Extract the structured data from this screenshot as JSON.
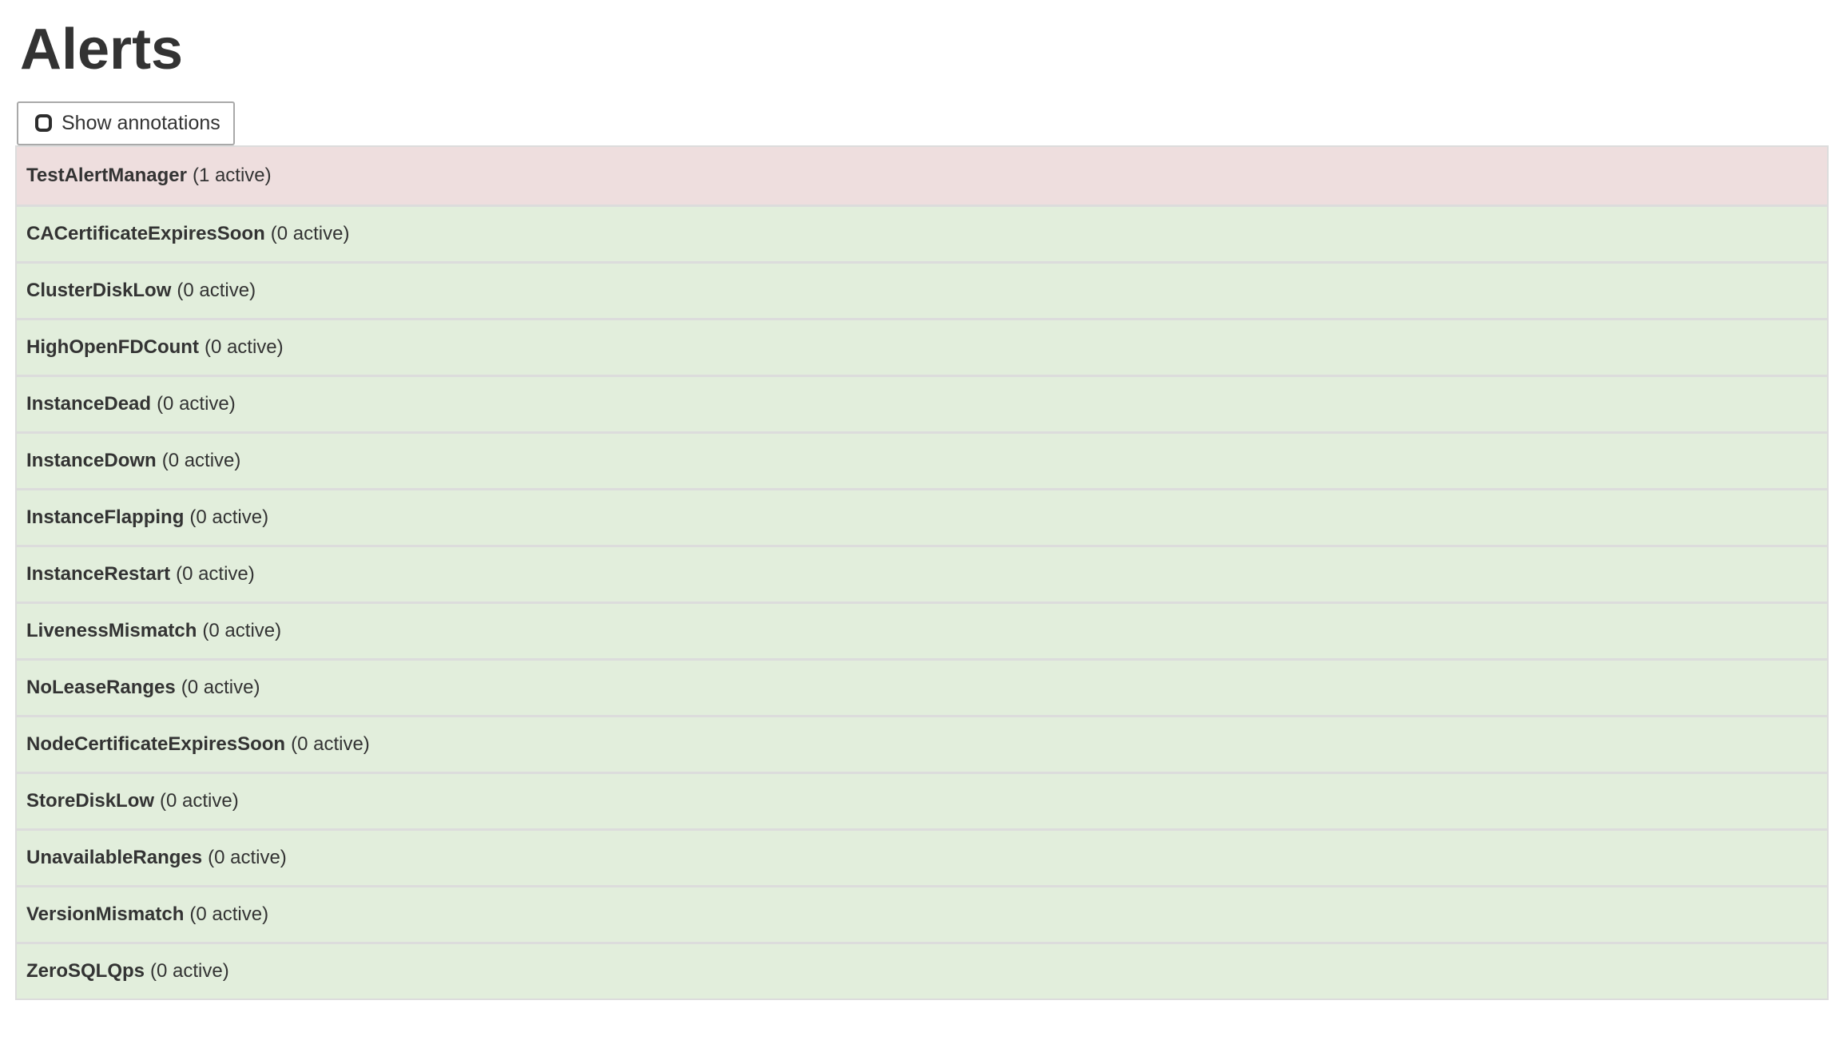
{
  "page": {
    "title": "Alerts"
  },
  "toolbar": {
    "show_annotations": {
      "label": "Show annotations",
      "checked": false
    }
  },
  "colors": {
    "firing_bg": "#eedede",
    "inactive_bg": "#e2eedc",
    "table_border": "#dcdcdc",
    "button_border": "#a9a9a9",
    "text": "#333333"
  },
  "alerts": [
    {
      "name": "TestAlertManager",
      "active": 1,
      "count_label": "(1 active)",
      "state": "firing"
    },
    {
      "name": "CACertificateExpiresSoon",
      "active": 0,
      "count_label": "(0 active)",
      "state": "inactive"
    },
    {
      "name": "ClusterDiskLow",
      "active": 0,
      "count_label": "(0 active)",
      "state": "inactive"
    },
    {
      "name": "HighOpenFDCount",
      "active": 0,
      "count_label": "(0 active)",
      "state": "inactive"
    },
    {
      "name": "InstanceDead",
      "active": 0,
      "count_label": "(0 active)",
      "state": "inactive"
    },
    {
      "name": "InstanceDown",
      "active": 0,
      "count_label": "(0 active)",
      "state": "inactive"
    },
    {
      "name": "InstanceFlapping",
      "active": 0,
      "count_label": "(0 active)",
      "state": "inactive"
    },
    {
      "name": "InstanceRestart",
      "active": 0,
      "count_label": "(0 active)",
      "state": "inactive"
    },
    {
      "name": "LivenessMismatch",
      "active": 0,
      "count_label": "(0 active)",
      "state": "inactive"
    },
    {
      "name": "NoLeaseRanges",
      "active": 0,
      "count_label": "(0 active)",
      "state": "inactive"
    },
    {
      "name": "NodeCertificateExpiresSoon",
      "active": 0,
      "count_label": "(0 active)",
      "state": "inactive"
    },
    {
      "name": "StoreDiskLow",
      "active": 0,
      "count_label": "(0 active)",
      "state": "inactive"
    },
    {
      "name": "UnavailableRanges",
      "active": 0,
      "count_label": "(0 active)",
      "state": "inactive"
    },
    {
      "name": "VersionMismatch",
      "active": 0,
      "count_label": "(0 active)",
      "state": "inactive"
    },
    {
      "name": "ZeroSQLQps",
      "active": 0,
      "count_label": "(0 active)",
      "state": "inactive"
    }
  ]
}
